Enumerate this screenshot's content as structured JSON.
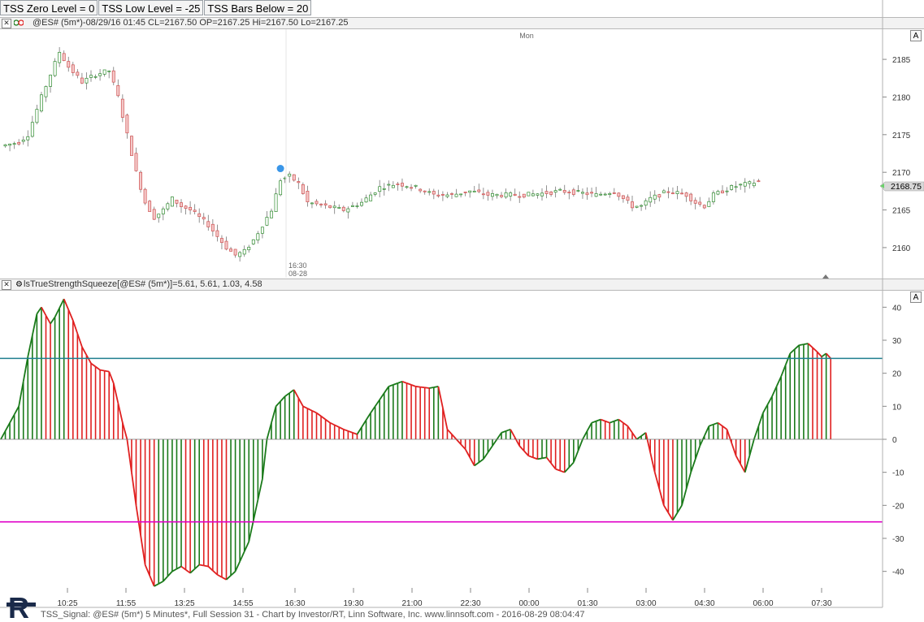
{
  "toolbar": {
    "buttons": [
      "TSS Zero Level = 0",
      "TSS Low Level = -25",
      "TSS Bars Below = 20"
    ]
  },
  "price_pane": {
    "header": "@ES# (5m*)-08/29/16 01:45 CL=2167.50 OP=2167.25 Hi=2167.50 Lo=2167.25",
    "autoscale_label": "A",
    "day_label": "Mon",
    "session_marker_time": "16:30",
    "session_marker_date": "08-28",
    "last_price_tag": "2168.75"
  },
  "indicator_pane": {
    "header": "lsTrueStrengthSqueeze[@ES# (5m*)]=5.61, 5.61, 1.03, 4.58",
    "autoscale_label": "A"
  },
  "footer": "TSS_Signal: @ES# (5m*) 5 Minutes*, Full Session 31 - Chart by Investor/RT, Linn Software, Inc. www.linnsoft.com - 2016-08-29 08:04:47",
  "colors": {
    "up": "#1a7a1a",
    "down": "#e02020",
    "upper_level": "#1f7f8f",
    "lower_level": "#e000c8",
    "signal_dot": "#3a96e8"
  },
  "chart_data": [
    {
      "type": "candlestick",
      "ylabel": "",
      "ylim": [
        2156,
        2189
      ],
      "yticks": [
        2160,
        2165,
        2170,
        2175,
        2180,
        2185
      ],
      "xlabels": [
        "10:25",
        "11:55",
        "13:25",
        "14:55",
        "16:30",
        "19:30",
        "21:00",
        "22:30",
        "00:00",
        "01:30",
        "03:00",
        "04:30",
        "06:00",
        "07:30"
      ],
      "close_path": [
        [
          0,
          2173.5
        ],
        [
          4,
          2174
        ],
        [
          6,
          2175
        ],
        [
          9,
          2180
        ],
        [
          11,
          2183
        ],
        [
          13,
          2186
        ],
        [
          15,
          2184
        ],
        [
          18,
          2182
        ],
        [
          21,
          2183
        ],
        [
          24,
          2183.5
        ],
        [
          26,
          2180
        ],
        [
          28,
          2175
        ],
        [
          30,
          2170
        ],
        [
          32,
          2166
        ],
        [
          34,
          2164
        ],
        [
          36,
          2165
        ],
        [
          38,
          2166.5
        ],
        [
          40,
          2165.5
        ],
        [
          42,
          2165
        ],
        [
          44,
          2164
        ],
        [
          46,
          2163
        ],
        [
          48,
          2161.5
        ],
        [
          50,
          2160
        ],
        [
          52,
          2159
        ],
        [
          54,
          2159.5
        ],
        [
          56,
          2161
        ],
        [
          58,
          2163
        ],
        [
          60,
          2165
        ],
        [
          62,
          2169
        ],
        [
          64,
          2169.5
        ],
        [
          66,
          2168.5
        ],
        [
          68,
          2166
        ],
        [
          72,
          2165.5
        ],
        [
          76,
          2165
        ],
        [
          80,
          2166
        ],
        [
          84,
          2168
        ],
        [
          88,
          2168.5
        ],
        [
          92,
          2168
        ],
        [
          96,
          2167
        ],
        [
          100,
          2167
        ],
        [
          104,
          2167.5
        ],
        [
          108,
          2167
        ],
        [
          112,
          2167
        ],
        [
          116,
          2167
        ],
        [
          120,
          2167.2
        ],
        [
          124,
          2167.5
        ],
        [
          128,
          2167.3
        ],
        [
          132,
          2167
        ],
        [
          136,
          2167.5
        ],
        [
          138,
          2166.5
        ],
        [
          140,
          2165.5
        ],
        [
          142,
          2165.5
        ],
        [
          144,
          2166.5
        ],
        [
          148,
          2167.5
        ],
        [
          152,
          2167
        ],
        [
          154,
          2166
        ],
        [
          156,
          2165.5
        ],
        [
          158,
          2167
        ],
        [
          160,
          2167.5
        ],
        [
          162,
          2168
        ],
        [
          164,
          2168.3
        ],
        [
          166,
          2168.5
        ],
        [
          168,
          2168.8
        ]
      ],
      "signal_dot": {
        "bar": 62,
        "value": 2170.5
      }
    },
    {
      "type": "histogram",
      "name": "lsTrueStrengthSqueeze",
      "ylim": [
        -45,
        45
      ],
      "yticks": [
        40,
        30,
        20,
        10,
        0,
        -10,
        -20,
        -30,
        -40
      ],
      "zero_level": 0,
      "upper_level": 24.5,
      "lower_level": -25,
      "keypoints": [
        [
          0,
          0
        ],
        [
          4,
          10
        ],
        [
          6,
          25
        ],
        [
          8,
          38
        ],
        [
          9,
          40
        ],
        [
          11,
          35
        ],
        [
          12,
          37
        ],
        [
          14,
          42.5
        ],
        [
          16,
          36
        ],
        [
          18,
          28
        ],
        [
          20,
          23
        ],
        [
          22,
          21
        ],
        [
          24,
          20.5
        ],
        [
          25,
          17
        ],
        [
          27,
          5
        ],
        [
          28,
          0
        ],
        [
          30,
          -20
        ],
        [
          32,
          -38
        ],
        [
          34,
          -44.5
        ],
        [
          36,
          -43
        ],
        [
          38,
          -40
        ],
        [
          40,
          -38.5
        ],
        [
          42,
          -40.5
        ],
        [
          44,
          -38
        ],
        [
          46,
          -38.5
        ],
        [
          48,
          -41
        ],
        [
          50,
          -42.5
        ],
        [
          52,
          -40
        ],
        [
          55,
          -31
        ],
        [
          58,
          -12
        ],
        [
          59,
          0
        ],
        [
          61,
          10
        ],
        [
          63,
          13
        ],
        [
          65,
          15
        ],
        [
          67,
          10
        ],
        [
          70,
          8
        ],
        [
          73,
          5
        ],
        [
          76,
          3
        ],
        [
          79,
          1.5
        ],
        [
          82,
          8
        ],
        [
          86,
          16
        ],
        [
          89,
          17.5
        ],
        [
          92,
          16
        ],
        [
          95,
          15.5
        ],
        [
          97,
          16
        ],
        [
          99,
          3
        ],
        [
          101,
          0
        ],
        [
          103,
          -3
        ],
        [
          105,
          -8
        ],
        [
          107,
          -6
        ],
        [
          109,
          -2
        ],
        [
          111,
          2
        ],
        [
          113,
          3
        ],
        [
          115,
          -2
        ],
        [
          117,
          -5
        ],
        [
          119,
          -6
        ],
        [
          121,
          -5.5
        ],
        [
          123,
          -9
        ],
        [
          125,
          -10
        ],
        [
          127,
          -7
        ],
        [
          129,
          0
        ],
        [
          131,
          5
        ],
        [
          133,
          6
        ],
        [
          135,
          5
        ],
        [
          137,
          6
        ],
        [
          139,
          4
        ],
        [
          141,
          0
        ],
        [
          143,
          2
        ],
        [
          145,
          -10
        ],
        [
          147,
          -20
        ],
        [
          149,
          -24.5
        ],
        [
          151,
          -20
        ],
        [
          153,
          -10
        ],
        [
          155,
          -2
        ],
        [
          157,
          4
        ],
        [
          159,
          5
        ],
        [
          161,
          3
        ],
        [
          163,
          -5
        ],
        [
          165,
          -10
        ],
        [
          167,
          0
        ],
        [
          169,
          8
        ],
        [
          171,
          13
        ],
        [
          173,
          19
        ],
        [
          175,
          26
        ],
        [
          177,
          28.5
        ],
        [
          179,
          29
        ],
        [
          181,
          26.5
        ],
        [
          182,
          25
        ],
        [
          183,
          26
        ],
        [
          184,
          24.5
        ]
      ]
    }
  ]
}
